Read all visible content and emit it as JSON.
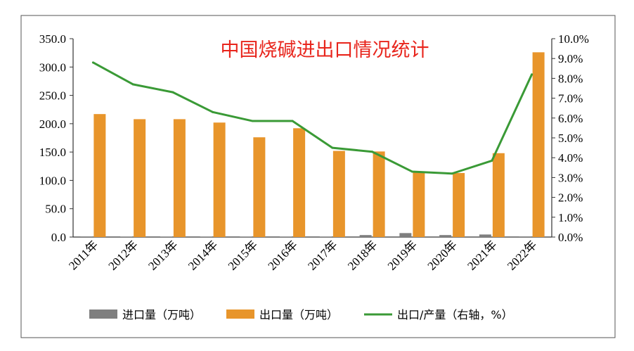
{
  "chart_data": {
    "type": "bar",
    "title": "中国烧碱进出口情况统计",
    "categories": [
      "2011年",
      "2012年",
      "2013年",
      "2014年",
      "2015年",
      "2016年",
      "2017年",
      "2018年",
      "2019年",
      "2020年",
      "2021年",
      "2022年"
    ],
    "series": [
      {
        "name": "进口量（万吨）",
        "type": "bar",
        "axis": "left",
        "color": "#7f7f7f",
        "values": [
          1.0,
          0.5,
          0.5,
          0.5,
          0.5,
          0.5,
          0.5,
          3.5,
          7.0,
          3.5,
          4.5,
          1.0
        ]
      },
      {
        "name": "出口量（万吨）",
        "type": "bar",
        "axis": "left",
        "color": "#e8952b",
        "values": [
          217,
          208,
          208,
          202,
          176,
          192,
          152,
          151,
          115,
          113,
          148,
          326
        ]
      },
      {
        "name": "出口/产量（右轴，%）",
        "type": "line",
        "axis": "right",
        "color": "#3a9a36",
        "values": [
          8.8,
          7.7,
          7.3,
          6.3,
          5.85,
          5.85,
          4.5,
          4.3,
          3.3,
          3.2,
          3.85,
          8.2
        ]
      }
    ],
    "y_left": {
      "min": 0,
      "max": 350,
      "ticks": [
        "0.0",
        "50.0",
        "100.0",
        "150.0",
        "200.0",
        "250.0",
        "300.0",
        "350.0"
      ]
    },
    "y_right": {
      "min": 0,
      "max": 10,
      "ticks": [
        "0.0%",
        "1.0%",
        "2.0%",
        "3.0%",
        "4.0%",
        "5.0%",
        "6.0%",
        "7.0%",
        "8.0%",
        "9.0%",
        "10.0%"
      ]
    },
    "legend_position": "bottom",
    "grid": false,
    "title_color": "#e8251c"
  }
}
